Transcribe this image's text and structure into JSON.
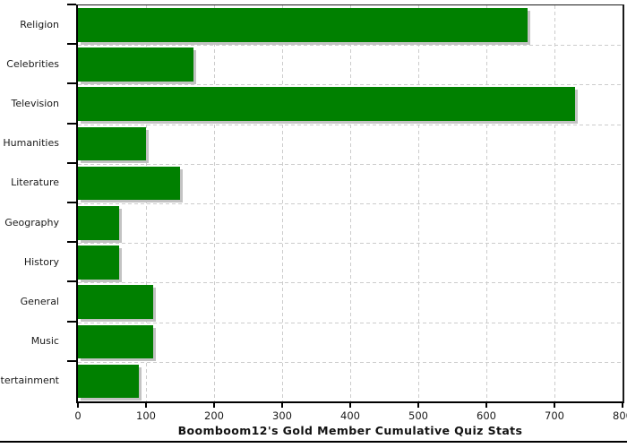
{
  "chart_data": {
    "type": "bar",
    "orientation": "horizontal",
    "title": "Boomboom12's Gold Member Cumulative Quiz Stats",
    "categories": [
      "Religion",
      "Celebrities",
      "Television",
      "Humanities",
      "Literature",
      "Geography",
      "History",
      "General",
      "Music",
      "Entertainment"
    ],
    "values": [
      660,
      170,
      730,
      100,
      150,
      60,
      60,
      110,
      110,
      90
    ],
    "xlabel": "",
    "ylabel": "",
    "xlim": [
      0,
      800
    ],
    "x_ticks": [
      0,
      100,
      200,
      300,
      400,
      500,
      600,
      700,
      800
    ],
    "grid": true,
    "legend_position": "none",
    "bar_color": "#008000",
    "shadow_color": "#c3c3c3",
    "gridline_color": "#cccccc",
    "axis_color": "#000000",
    "text_color": "#1a1a1a"
  }
}
